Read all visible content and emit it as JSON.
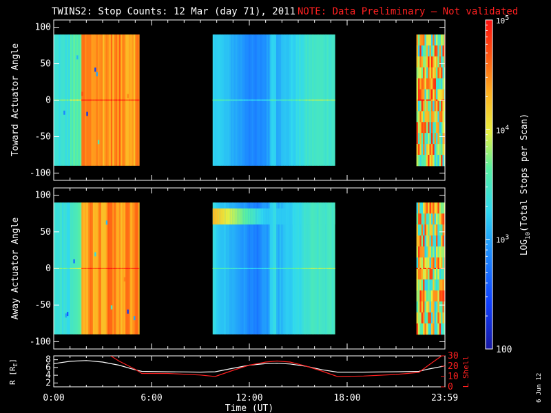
{
  "header": {
    "title": "TWINS2: Stop Counts: 12 Mar (day  71), 2011",
    "note": "NOTE: Data Preliminary – Not validated"
  },
  "colorbar": {
    "label": "LOG10(Total Stops per Scan)",
    "label_prefix": "LOG",
    "label_sub": "10",
    "label_suffix": "(Total Stops per Scan)",
    "tick_labels": [
      {
        "base": "10",
        "exp": "5",
        "value": 100000
      },
      {
        "base": "10",
        "exp": "4",
        "value": 10000
      },
      {
        "base": "10",
        "exp": "3",
        "value": 1000
      },
      {
        "base": "100",
        "exp": "",
        "value": 100
      }
    ],
    "range": [
      100,
      100000
    ],
    "scale": "log"
  },
  "footer": {
    "date_stamp": "6 Jun 12"
  },
  "chart_data": [
    {
      "type": "heatmap",
      "ylabel": "Toward Actuator Angle",
      "ylim": [
        -110,
        110
      ],
      "yticks": [
        100,
        50,
        0,
        -50,
        -100
      ],
      "ytick_labels": [
        "100",
        "50",
        "0",
        "-50",
        "-100"
      ],
      "xlim": [
        0,
        24
      ],
      "angle_range": [
        -90,
        90
      ],
      "data_segments": [
        {
          "start_hr": 0.0,
          "end_hr": 5.25,
          "level": "mixed cyan-to-orange"
        },
        {
          "start_hr": 9.75,
          "end_hr": 17.25,
          "level": "low (blue/cyan)"
        },
        {
          "start_hr": 22.25,
          "end_hr": 24.0,
          "level": "high, noisy"
        }
      ]
    },
    {
      "type": "heatmap",
      "ylabel": "Away Actuator Angle",
      "ylim": [
        -110,
        110
      ],
      "yticks": [
        100,
        50,
        0,
        -50,
        -100
      ],
      "ytick_labels": [
        "100",
        "50",
        "0",
        "-50",
        "-100"
      ],
      "xlim": [
        0,
        24
      ],
      "angle_range": [
        -90,
        90
      ],
      "data_segments": [
        {
          "start_hr": 0.0,
          "end_hr": 5.25,
          "level": "mixed cyan-to-orange"
        },
        {
          "start_hr": 9.75,
          "end_hr": 17.25,
          "level": "low (blue/cyan), enhanced near +70"
        },
        {
          "start_hr": 22.25,
          "end_hr": 24.0,
          "level": "high, noisy"
        }
      ]
    },
    {
      "type": "line",
      "ylabel": "R (RE)",
      "ylabel_left": "R [R",
      "ylabel_sub": "E",
      "ylabel_right": "]",
      "y2label": "L Shell",
      "ylim": [
        1,
        9
      ],
      "yticks": [
        8,
        6,
        4,
        2
      ],
      "ytick_labels": [
        "8",
        "6",
        "4",
        "2"
      ],
      "y2lim": [
        0,
        30
      ],
      "y2ticks": [
        30,
        20,
        10,
        0
      ],
      "y2tick_labels": [
        "30",
        "20",
        "10",
        "0"
      ],
      "xlabel": "Time (UT)",
      "xlim": [
        0,
        24
      ],
      "xtick_values": [
        0,
        6,
        12,
        18,
        23.983
      ],
      "xtick_labels": [
        "0:00",
        "6:00",
        "12:00",
        "18:00",
        "23:59"
      ],
      "series": [
        {
          "color": "#ffffff",
          "x": [
            0,
            1.0,
            2.0,
            3.0,
            4.0,
            5.0,
            5.4,
            7.0,
            9.0,
            9.9,
            11.0,
            12.0,
            13.0,
            13.7,
            14.5,
            15.5,
            16.5,
            17.4,
            19.0,
            21.0,
            22.4,
            23.0,
            24.0
          ],
          "y": [
            7.0,
            7.6,
            7.8,
            7.4,
            6.6,
            5.4,
            5.0,
            4.9,
            4.8,
            4.9,
            5.8,
            6.6,
            7.0,
            7.1,
            6.9,
            6.3,
            5.4,
            4.8,
            4.8,
            4.9,
            5.0,
            5.6,
            6.4
          ]
        },
        {
          "color": "#ff2020",
          "axis": "right",
          "x": [
            3.5,
            4.0,
            5.0,
            5.4,
            7.0,
            9.0,
            9.9,
            11.0,
            12.0,
            13.0,
            13.7,
            14.5,
            15.5,
            16.5,
            17.4,
            19.0,
            21.0,
            22.4,
            23.0,
            23.8
          ],
          "y": [
            30,
            25,
            17,
            13,
            13,
            11.5,
            10,
            16,
            21,
            24,
            25,
            24,
            20,
            15,
            10,
            10.5,
            12,
            14,
            21,
            30
          ]
        }
      ]
    }
  ]
}
